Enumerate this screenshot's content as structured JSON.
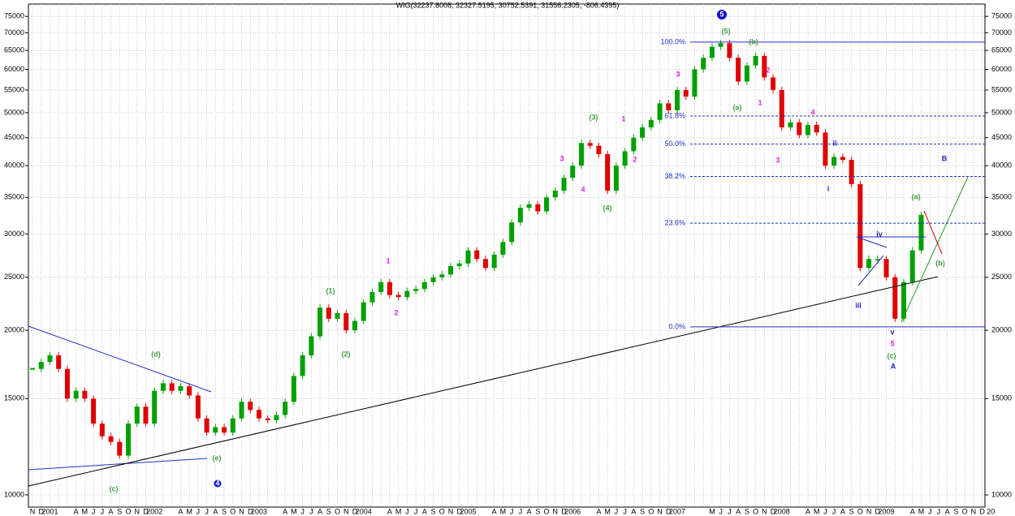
{
  "chart_data": {
    "type": "candle",
    "title": "WIG(32237.8008, 32327.5195, 30752.5391, 31556.2305, -806.4395)",
    "log_scale": true,
    "grid": true,
    "up_color": "#00a000",
    "down_color": "#e00000",
    "categories": [
      "N",
      "D",
      "2001",
      null,
      null,
      "A",
      "M",
      "J",
      "J",
      "A",
      "S",
      "O",
      "N",
      "D",
      "2002",
      null,
      null,
      "A",
      "M",
      "J",
      "J",
      "A",
      "S",
      "O",
      "N",
      "D",
      "2003",
      null,
      null,
      "A",
      "M",
      "J",
      "J",
      "A",
      "S",
      "O",
      "N",
      "D",
      "2004",
      null,
      null,
      "A",
      "M",
      "J",
      "J",
      "A",
      "S",
      "O",
      "N",
      "D",
      "2005",
      null,
      null,
      "A",
      "M",
      "J",
      "J",
      "A",
      "S",
      "O",
      "N",
      "D",
      "2006",
      null,
      null,
      "A",
      "M",
      "J",
      "J",
      "A",
      "S",
      "O",
      "N",
      "D",
      "2007",
      null,
      null,
      null,
      "M",
      "J",
      "J",
      "A",
      "S",
      "O",
      "N",
      "D",
      "2008",
      null,
      null,
      "A",
      "M",
      "J",
      "J",
      "A",
      "S",
      "O",
      "N",
      "D",
      "2009",
      null,
      null,
      "A",
      "M",
      "J",
      "J",
      "A",
      "S",
      "O",
      "N",
      "D",
      "20"
    ],
    "series": [
      {
        "name": "WIG",
        "values": [
          17000,
          17500,
          18000,
          17000,
          15000,
          15500,
          15000,
          13500,
          12800,
          12500,
          11800,
          13500,
          14500,
          13500,
          15500,
          16000,
          15500,
          15800,
          15200,
          13800,
          13000,
          13300,
          13000,
          13800,
          14800,
          14300,
          13800,
          13700,
          14000,
          14800,
          16500,
          18000,
          19500,
          22000,
          21000,
          21500,
          20000,
          20800,
          22500,
          23500,
          24500,
          23200,
          23000,
          23600,
          23800,
          24500,
          25000,
          25300,
          26200,
          26500,
          28000,
          27000,
          26000,
          27500,
          29000,
          31500,
          33500,
          34000,
          33000,
          35000,
          36000,
          38000,
          40000,
          44000,
          43500,
          42000,
          36000,
          40000,
          42500,
          45000,
          47000,
          48500,
          52000,
          50500,
          55000,
          53500,
          60000,
          63000,
          66000,
          67000,
          63000,
          57000,
          61000,
          63500,
          58000,
          55000,
          47000,
          48000,
          45500,
          47500,
          46000,
          40000,
          41500,
          41000,
          37000,
          26000,
          27000,
          27000,
          25000,
          21000,
          24500,
          28000,
          32500,
          null,
          null,
          null,
          null,
          null,
          null,
          null,
          null
        ]
      }
    ],
    "ylim": [
      9500,
      79000
    ],
    "yticks": [
      10000,
      15000,
      20000,
      25000,
      30000,
      35000,
      40000,
      45000,
      50000,
      55000,
      60000,
      65000,
      70000,
      75000
    ],
    "fib_levels": [
      {
        "label": "100.0%",
        "value": 67300
      },
      {
        "label": "61.8%",
        "value": 49300
      },
      {
        "label": "50.0%",
        "value": 43800
      },
      {
        "label": "38.2%",
        "value": 38230
      },
      {
        "label": "23.6%",
        "value": 31390
      },
      {
        "label": "0.0%",
        "value": 20290
      }
    ],
    "annotations": [
      {
        "text": "5",
        "color": "#ffffff"
      },
      {
        "text": "4",
        "color": "#ffffff"
      },
      {
        "text": "(5)",
        "color": "#40a040"
      },
      {
        "text": "(b)",
        "color": "#40a040"
      },
      {
        "text": "(a)",
        "color": "#40a040"
      },
      {
        "text": "(3)",
        "color": "#40a040"
      },
      {
        "text": "(4)",
        "color": "#40a040"
      },
      {
        "text": "(1)",
        "color": "#40a040"
      },
      {
        "text": "(2)",
        "color": "#40a040"
      },
      {
        "text": "(d)",
        "color": "#40a040"
      },
      {
        "text": "(e)",
        "color": "#40a040"
      },
      {
        "text": "(c)",
        "color": "#40a040"
      },
      {
        "text": "(a)",
        "color": "#40a040"
      },
      {
        "text": "(b)",
        "color": "#40a040"
      },
      {
        "text": "(c)",
        "color": "#40a040"
      },
      {
        "text": "3",
        "color": "#e020e0"
      },
      {
        "text": "2",
        "color": "#e020e0"
      },
      {
        "text": "1",
        "color": "#e020e0"
      },
      {
        "text": "1",
        "color": "#e020e0"
      },
      {
        "text": "2",
        "color": "#e020e0"
      },
      {
        "text": "3",
        "color": "#e020e0"
      },
      {
        "text": "4",
        "color": "#e020e0"
      },
      {
        "text": "1",
        "color": "#e020e0"
      },
      {
        "text": "2",
        "color": "#e020e0"
      },
      {
        "text": "3",
        "color": "#e020e0"
      },
      {
        "text": "4",
        "color": "#e020e0"
      },
      {
        "text": "5",
        "color": "#e020e0"
      },
      {
        "text": "ii",
        "color": "#2020c0"
      },
      {
        "text": "i",
        "color": "#2020c0"
      },
      {
        "text": "iv",
        "color": "#2020c0"
      },
      {
        "text": "iii",
        "color": "#2020c0"
      },
      {
        "text": "v",
        "color": "#2020c0"
      },
      {
        "text": "A",
        "color": "#2020c0"
      },
      {
        "text": "B",
        "color": "#2020c0"
      }
    ]
  }
}
